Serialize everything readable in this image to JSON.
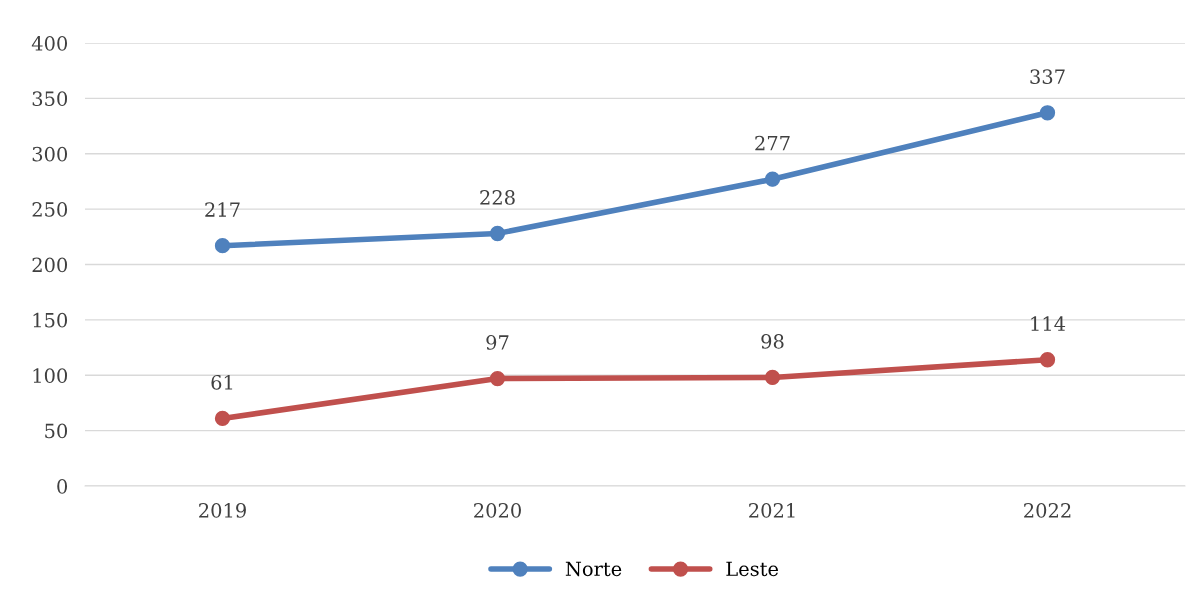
{
  "chart_data": {
    "type": "line",
    "categories": [
      "2019",
      "2020",
      "2021",
      "2022"
    ],
    "series": [
      {
        "name": "Norte",
        "color": "#4f81bd",
        "values": [
          217,
          228,
          277,
          337
        ]
      },
      {
        "name": "Leste",
        "color": "#c0504d",
        "values": [
          61,
          97,
          98,
          114
        ]
      }
    ],
    "ylim": [
      0,
      400
    ],
    "yticks": [
      0,
      50,
      100,
      150,
      200,
      250,
      300,
      350,
      400
    ],
    "grid": "y",
    "legend": "bottom",
    "marker": "circle",
    "line_style": "solid",
    "data_labels": true
  }
}
